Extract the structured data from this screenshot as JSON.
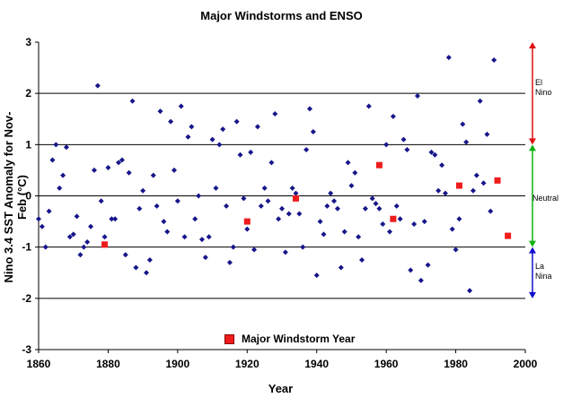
{
  "chart_data": {
    "type": "scatter",
    "title": "Major Windstorms and ENSO",
    "xlabel": "Year",
    "ylabel": "Nino 3.4 SST Anomaly for Nov-Feb (°C)",
    "xlim": [
      1860,
      2000
    ],
    "ylim": [
      -3,
      3
    ],
    "xticks": [
      1860,
      1880,
      1900,
      1920,
      1940,
      1960,
      1980,
      2000
    ],
    "yticks": [
      -3,
      -2,
      -1,
      0,
      1,
      2,
      3
    ],
    "gridlines_y": [
      -2,
      -1,
      1,
      2
    ],
    "series": [
      {
        "name": "Nino 3.4 anomaly",
        "color": "#16168a",
        "marker": "diamond",
        "points": [
          [
            1860,
            -0.45
          ],
          [
            1861,
            -0.6
          ],
          [
            1862,
            -1.0
          ],
          [
            1863,
            -0.3
          ],
          [
            1864,
            0.7
          ],
          [
            1865,
            1.0
          ],
          [
            1866,
            0.15
          ],
          [
            1867,
            0.4
          ],
          [
            1868,
            0.95
          ],
          [
            1869,
            -0.8
          ],
          [
            1870,
            -0.75
          ],
          [
            1871,
            -0.4
          ],
          [
            1872,
            -1.15
          ],
          [
            1873,
            -1.0
          ],
          [
            1874,
            -0.9
          ],
          [
            1875,
            -0.6
          ],
          [
            1876,
            0.5
          ],
          [
            1877,
            2.15
          ],
          [
            1878,
            -0.1
          ],
          [
            1879,
            -0.8
          ],
          [
            1880,
            0.55
          ],
          [
            1881,
            -0.45
          ],
          [
            1882,
            -0.45
          ],
          [
            1883,
            0.65
          ],
          [
            1884,
            0.7
          ],
          [
            1885,
            -1.15
          ],
          [
            1886,
            0.45
          ],
          [
            1887,
            1.85
          ],
          [
            1888,
            -1.4
          ],
          [
            1889,
            -0.25
          ],
          [
            1890,
            0.1
          ],
          [
            1891,
            -1.5
          ],
          [
            1892,
            -1.25
          ],
          [
            1893,
            0.4
          ],
          [
            1894,
            -0.2
          ],
          [
            1895,
            1.65
          ],
          [
            1896,
            -0.5
          ],
          [
            1897,
            -0.7
          ],
          [
            1898,
            1.45
          ],
          [
            1899,
            0.5
          ],
          [
            1900,
            -0.1
          ],
          [
            1901,
            1.75
          ],
          [
            1902,
            -0.8
          ],
          [
            1903,
            1.15
          ],
          [
            1904,
            1.35
          ],
          [
            1905,
            -0.45
          ],
          [
            1906,
            0.0
          ],
          [
            1907,
            -0.85
          ],
          [
            1908,
            -1.2
          ],
          [
            1909,
            -0.8
          ],
          [
            1910,
            1.1
          ],
          [
            1911,
            0.15
          ],
          [
            1912,
            1.0
          ],
          [
            1913,
            1.3
          ],
          [
            1914,
            -0.2
          ],
          [
            1915,
            -1.3
          ],
          [
            1916,
            -1.0
          ],
          [
            1917,
            1.45
          ],
          [
            1918,
            0.8
          ],
          [
            1919,
            -0.05
          ],
          [
            1920,
            -0.65
          ],
          [
            1921,
            0.85
          ],
          [
            1922,
            -1.05
          ],
          [
            1923,
            1.35
          ],
          [
            1924,
            -0.2
          ],
          [
            1925,
            0.15
          ],
          [
            1926,
            -0.1
          ],
          [
            1927,
            0.65
          ],
          [
            1928,
            1.6
          ],
          [
            1929,
            -0.45
          ],
          [
            1930,
            -0.25
          ],
          [
            1931,
            -1.1
          ],
          [
            1932,
            -0.35
          ],
          [
            1933,
            0.15
          ],
          [
            1934,
            0.05
          ],
          [
            1935,
            -0.35
          ],
          [
            1936,
            -1.0
          ],
          [
            1937,
            0.9
          ],
          [
            1938,
            1.7
          ],
          [
            1939,
            1.25
          ],
          [
            1940,
            -1.55
          ],
          [
            1941,
            -0.5
          ],
          [
            1942,
            -0.75
          ],
          [
            1943,
            -0.2
          ],
          [
            1944,
            0.05
          ],
          [
            1945,
            -0.1
          ],
          [
            1946,
            -0.25
          ],
          [
            1947,
            -1.4
          ],
          [
            1948,
            -0.7
          ],
          [
            1949,
            0.65
          ],
          [
            1950,
            0.2
          ],
          [
            1951,
            0.45
          ],
          [
            1952,
            -0.8
          ],
          [
            1953,
            -1.25
          ],
          [
            1954,
            -0.25
          ],
          [
            1955,
            1.75
          ],
          [
            1956,
            -0.05
          ],
          [
            1957,
            -0.15
          ],
          [
            1958,
            -0.25
          ],
          [
            1959,
            -0.55
          ],
          [
            1960,
            1.0
          ],
          [
            1961,
            -0.7
          ],
          [
            1962,
            1.55
          ],
          [
            1963,
            -0.2
          ],
          [
            1964,
            -0.45
          ],
          [
            1965,
            1.1
          ],
          [
            1966,
            0.9
          ],
          [
            1967,
            -1.45
          ],
          [
            1968,
            -0.55
          ],
          [
            1969,
            1.95
          ],
          [
            1970,
            -1.65
          ],
          [
            1971,
            -0.5
          ],
          [
            1972,
            -1.35
          ],
          [
            1973,
            0.85
          ],
          [
            1974,
            0.8
          ],
          [
            1975,
            0.1
          ],
          [
            1976,
            0.6
          ],
          [
            1977,
            0.05
          ],
          [
            1978,
            2.7
          ],
          [
            1979,
            -0.65
          ],
          [
            1980,
            -1.05
          ],
          [
            1981,
            -0.45
          ],
          [
            1982,
            1.4
          ],
          [
            1983,
            1.05
          ],
          [
            1984,
            -1.85
          ],
          [
            1985,
            0.1
          ],
          [
            1986,
            0.4
          ],
          [
            1987,
            1.85
          ],
          [
            1988,
            0.25
          ],
          [
            1989,
            1.2
          ],
          [
            1990,
            -0.3
          ],
          [
            1991,
            2.65
          ]
        ]
      },
      {
        "name": "Major Windstorm Year",
        "color": "#ee1c1c",
        "marker": "square",
        "points": [
          [
            1879,
            -0.95
          ],
          [
            1920,
            -0.5
          ],
          [
            1934,
            -0.05
          ],
          [
            1958,
            0.6
          ],
          [
            1962,
            -0.45
          ],
          [
            1981,
            0.2
          ],
          [
            1992,
            0.3
          ],
          [
            1995,
            -0.78
          ]
        ]
      }
    ],
    "legend": {
      "label": "Major Windstorm Year",
      "placement": "bottom-center"
    },
    "enso_regions": [
      {
        "name": "El Nino",
        "lines": [
          "El",
          "Nino"
        ],
        "range": [
          1,
          3
        ],
        "color": "#e01010"
      },
      {
        "name": "Neutral",
        "lines": [
          "Neutral"
        ],
        "range": [
          -1,
          1
        ],
        "color": "#10b010"
      },
      {
        "name": "La Nina",
        "lines": [
          "La",
          "Nina"
        ],
        "range": [
          -2,
          -1
        ],
        "color": "#1010d0"
      }
    ]
  }
}
